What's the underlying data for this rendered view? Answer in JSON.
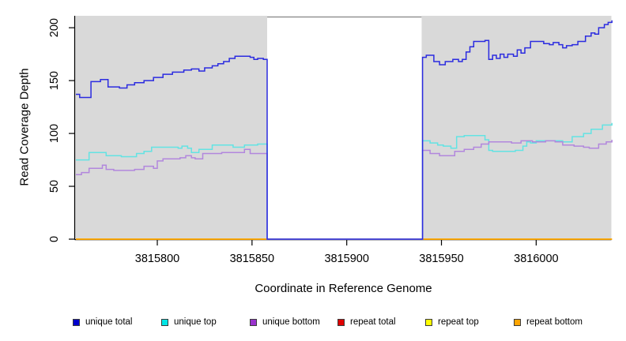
{
  "chart_data": {
    "type": "line",
    "step": true,
    "title": "",
    "x_label": "Coordinate in Reference Genome",
    "y_label": "Read Coverage Depth",
    "x_domain": [
      3815756.6,
      3816039.7
    ],
    "y_domain": [
      0,
      211.3
    ],
    "x_ticks": [
      3815800,
      3815850,
      3815900,
      3815950,
      3816000
    ],
    "y_ticks": [
      0,
      50,
      100,
      150,
      200
    ],
    "grid": false,
    "legend_position": "bottom",
    "plot_bg_color": "#d9d9d9",
    "axis_color": "#000000",
    "repeat_gap": {
      "start": 3815858,
      "end": 3815939.5,
      "fill": "#ffffff",
      "top_border": "#949494"
    },
    "series": [
      {
        "name": "repeat total",
        "line_color": "#e00000",
        "legend_fill": "#e00000",
        "points": [
          [
            3815757,
            0
          ],
          [
            3816040,
            0
          ]
        ]
      },
      {
        "name": "repeat top",
        "line_color": "#ffff00",
        "legend_fill": "#ffff00",
        "points": [
          [
            3815757,
            0
          ],
          [
            3816040,
            0
          ]
        ]
      },
      {
        "name": "repeat bottom",
        "line_color": "#ffa500",
        "legend_fill": "#ffa500",
        "points": [
          [
            3815757,
            0
          ],
          [
            3816040,
            0
          ]
        ]
      },
      {
        "name": "unique top",
        "line_color": "#63e3e3",
        "legend_fill": "#00e5e5",
        "points": [
          [
            3815757,
            75
          ],
          [
            3815764,
            82
          ],
          [
            3815773,
            79
          ],
          [
            3815781,
            78
          ],
          [
            3815789,
            81
          ],
          [
            3815793,
            83
          ],
          [
            3815797,
            87
          ],
          [
            3815811,
            86
          ],
          [
            3815813,
            88
          ],
          [
            3815816,
            86
          ],
          [
            3815818,
            82
          ],
          [
            3815822,
            85
          ],
          [
            3815829,
            89
          ],
          [
            3815840,
            87
          ],
          [
            3815846,
            89
          ],
          [
            3815853,
            90
          ],
          [
            3815858,
            0
          ],
          [
            3815939,
            0
          ],
          [
            3815940,
            93
          ],
          [
            3815944,
            91
          ],
          [
            3815948,
            89
          ],
          [
            3815951,
            88
          ],
          [
            3815955,
            86
          ],
          [
            3815958,
            97
          ],
          [
            3815962,
            98
          ],
          [
            3815973,
            94
          ],
          [
            3815975,
            84
          ],
          [
            3815977,
            83
          ],
          [
            3815989,
            84
          ],
          [
            3815993,
            88
          ],
          [
            3815995,
            92
          ],
          [
            3815997,
            91
          ],
          [
            3816000,
            93
          ],
          [
            3816014,
            92
          ],
          [
            3816019,
            97
          ],
          [
            3816025,
            100
          ],
          [
            3816029,
            104
          ],
          [
            3816035,
            108
          ],
          [
            3816040,
            110
          ]
        ]
      },
      {
        "name": "unique bottom",
        "line_color": "#b287dd",
        "legend_fill": "#9932cc",
        "points": [
          [
            3815757,
            61
          ],
          [
            3815760,
            63
          ],
          [
            3815764,
            67
          ],
          [
            3815771,
            70
          ],
          [
            3815773,
            66
          ],
          [
            3815777,
            65
          ],
          [
            3815788,
            66
          ],
          [
            3815793,
            69
          ],
          [
            3815798,
            67
          ],
          [
            3815800,
            74
          ],
          [
            3815803,
            76
          ],
          [
            3815812,
            77
          ],
          [
            3815815,
            79
          ],
          [
            3815818,
            77
          ],
          [
            3815820,
            76
          ],
          [
            3815824,
            81
          ],
          [
            3815834,
            82
          ],
          [
            3815846,
            85
          ],
          [
            3815849,
            81
          ],
          [
            3815858,
            0
          ],
          [
            3815939,
            0
          ],
          [
            3815940,
            84
          ],
          [
            3815944,
            81
          ],
          [
            3815949,
            79
          ],
          [
            3815957,
            83
          ],
          [
            3815962,
            85
          ],
          [
            3815967,
            87
          ],
          [
            3815971,
            90
          ],
          [
            3815975,
            92
          ],
          [
            3815987,
            91
          ],
          [
            3815992,
            93
          ],
          [
            3815998,
            92
          ],
          [
            3816005,
            93
          ],
          [
            3816010,
            92
          ],
          [
            3816014,
            89
          ],
          [
            3816020,
            88
          ],
          [
            3816025,
            87
          ],
          [
            3816028,
            86
          ],
          [
            3816033,
            90
          ],
          [
            3816037,
            92
          ],
          [
            3816040,
            94
          ]
        ]
      },
      {
        "name": "unique total",
        "line_color": "#2b2be0",
        "legend_fill": "#0000cc",
        "points": [
          [
            3815757,
            137
          ],
          [
            3815759,
            134
          ],
          [
            3815765,
            149
          ],
          [
            3815770,
            151
          ],
          [
            3815774,
            144
          ],
          [
            3815780,
            143
          ],
          [
            3815784,
            146
          ],
          [
            3815788,
            148
          ],
          [
            3815793,
            150
          ],
          [
            3815798,
            153
          ],
          [
            3815803,
            156
          ],
          [
            3815808,
            158
          ],
          [
            3815814,
            160
          ],
          [
            3815818,
            161
          ],
          [
            3815822,
            159
          ],
          [
            3815825,
            162
          ],
          [
            3815829,
            164
          ],
          [
            3815832,
            166
          ],
          [
            3815835,
            168
          ],
          [
            3815838,
            171
          ],
          [
            3815841,
            173
          ],
          [
            3815849,
            172
          ],
          [
            3815851,
            170
          ],
          [
            3815853,
            171
          ],
          [
            3815856,
            170
          ],
          [
            3815858,
            0
          ],
          [
            3815939,
            0
          ],
          [
            3815940,
            172
          ],
          [
            3815942,
            174
          ],
          [
            3815945,
            174
          ],
          [
            3815946,
            168
          ],
          [
            3815949,
            165
          ],
          [
            3815952,
            168
          ],
          [
            3815956,
            170
          ],
          [
            3815959,
            168
          ],
          [
            3815961,
            170
          ],
          [
            3815963,
            177
          ],
          [
            3815965,
            182
          ],
          [
            3815967,
            187
          ],
          [
            3815973,
            188
          ],
          [
            3815975,
            170
          ],
          [
            3815977,
            174
          ],
          [
            3815979,
            171
          ],
          [
            3815981,
            175
          ],
          [
            3815983,
            172
          ],
          [
            3815985,
            175
          ],
          [
            3815988,
            173
          ],
          [
            3815990,
            179
          ],
          [
            3815992,
            176
          ],
          [
            3815994,
            181
          ],
          [
            3815997,
            187
          ],
          [
            3816004,
            185
          ],
          [
            3816007,
            184
          ],
          [
            3816009,
            186
          ],
          [
            3816012,
            184
          ],
          [
            3816014,
            181
          ],
          [
            3816016,
            183
          ],
          [
            3816019,
            184
          ],
          [
            3816022,
            187
          ],
          [
            3816026,
            192
          ],
          [
            3816029,
            195
          ],
          [
            3816031,
            194
          ],
          [
            3816033,
            200
          ],
          [
            3816036,
            203
          ],
          [
            3816038,
            205
          ],
          [
            3816040,
            207
          ]
        ]
      }
    ],
    "legend_order": [
      "unique total",
      "unique top",
      "unique bottom",
      "repeat total",
      "repeat top",
      "repeat bottom"
    ]
  }
}
